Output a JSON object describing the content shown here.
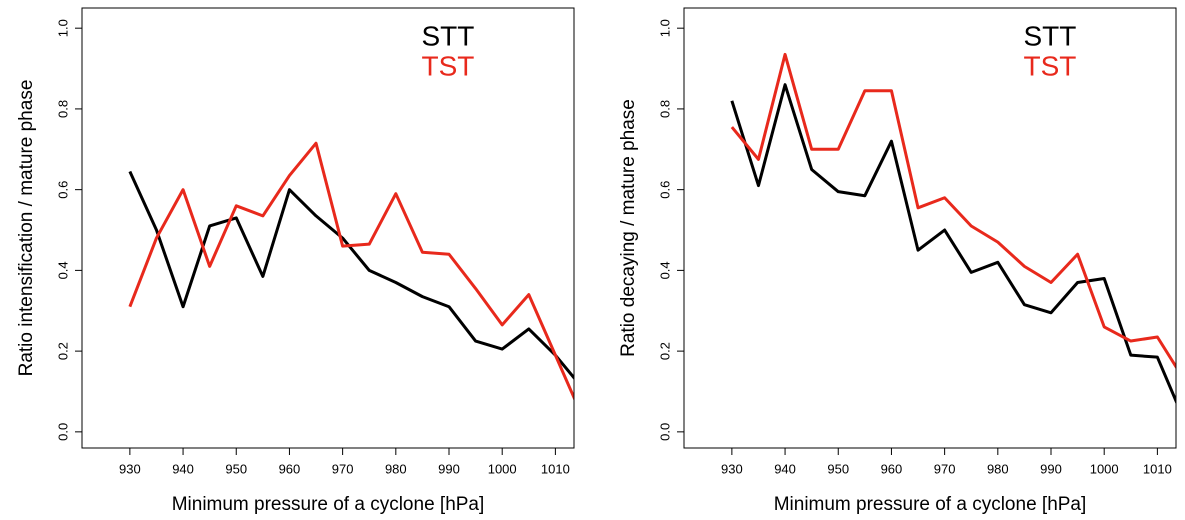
{
  "chart_data": [
    {
      "type": "line",
      "xlabel": "Minimum pressure of a cyclone [hPa]",
      "ylabel": "Ratio intensification / mature phase",
      "x": [
        930,
        935,
        940,
        945,
        950,
        955,
        960,
        965,
        970,
        975,
        980,
        985,
        990,
        995,
        1000,
        1005,
        1010,
        1015
      ],
      "series": [
        {
          "name": "STT",
          "color": "#000000",
          "values": [
            0.645,
            0.5,
            0.31,
            0.51,
            0.53,
            0.385,
            0.6,
            0.535,
            0.48,
            0.4,
            0.37,
            0.335,
            0.31,
            0.225,
            0.205,
            0.255,
            0.19,
            0.11
          ]
        },
        {
          "name": "TST",
          "color": "#e8291c",
          "values": [
            0.31,
            0.48,
            0.6,
            0.41,
            0.56,
            0.535,
            0.635,
            0.715,
            0.46,
            0.465,
            0.59,
            0.445,
            0.44,
            0.355,
            0.265,
            0.34,
            0.19,
            0.04
          ]
        }
      ],
      "xlim": [
        921,
        1013.5
      ],
      "ylim": [
        -0.04,
        1.05
      ],
      "xticks": [
        930,
        940,
        950,
        960,
        970,
        980,
        990,
        1000,
        1010
      ],
      "yticks": [
        {
          "value": 0,
          "label": "0.0"
        },
        0.2,
        0.4,
        0.6,
        0.8,
        {
          "value": 1,
          "label": "1.0"
        }
      ],
      "legend": "top-right"
    },
    {
      "type": "line",
      "xlabel": "Minimum pressure of a cyclone [hPa]",
      "ylabel": "Ratio decaying / mature phase",
      "x": [
        930,
        935,
        940,
        945,
        950,
        955,
        960,
        965,
        970,
        975,
        980,
        985,
        990,
        995,
        1000,
        1005,
        1010,
        1015
      ],
      "series": [
        {
          "name": "STT",
          "color": "#000000",
          "values": [
            0.82,
            0.61,
            0.86,
            0.65,
            0.595,
            0.585,
            0.72,
            0.45,
            0.5,
            0.395,
            0.42,
            0.315,
            0.295,
            0.37,
            0.38,
            0.19,
            0.185,
            0.03
          ]
        },
        {
          "name": "TST",
          "color": "#e8291c",
          "values": [
            0.755,
            0.675,
            0.935,
            0.7,
            0.7,
            0.845,
            0.845,
            0.555,
            0.58,
            0.51,
            0.47,
            0.41,
            0.37,
            0.44,
            0.26,
            0.225,
            0.235,
            0.13
          ]
        }
      ],
      "xlim": [
        921,
        1013.5
      ],
      "ylim": [
        -0.04,
        1.05
      ],
      "xticks": [
        930,
        940,
        950,
        960,
        970,
        980,
        990,
        1000,
        1010
      ],
      "yticks": [
        {
          "value": 0,
          "label": "0.0"
        },
        0.2,
        0.4,
        0.6,
        0.8,
        {
          "value": 1,
          "label": "1.0"
        }
      ],
      "legend": "top-right"
    }
  ]
}
